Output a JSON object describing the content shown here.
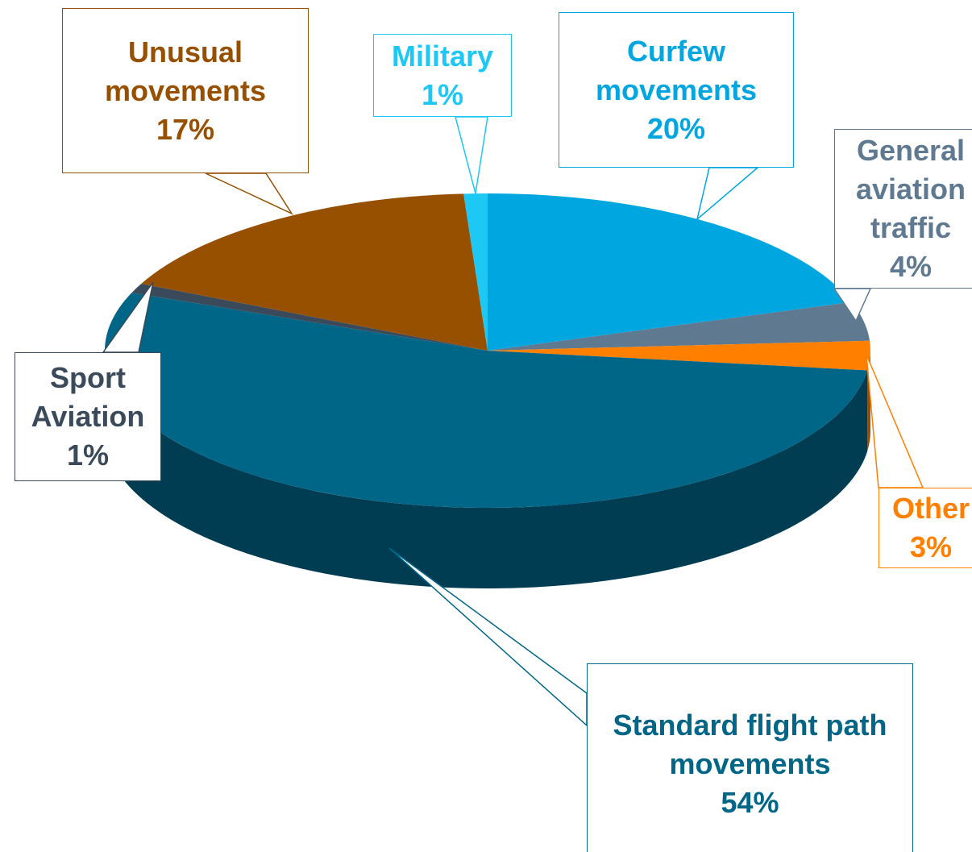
{
  "chart_data": {
    "type": "pie",
    "categories": [
      "Curfew movements",
      "General aviation traffic",
      "Other",
      "Standard flight path movements",
      "Sport Aviation",
      "Unusual movements",
      "Military"
    ],
    "values": [
      20,
      4,
      3,
      54,
      1,
      17,
      1
    ],
    "value_labels": [
      "20%",
      "4%",
      "3%",
      "54%",
      "1%",
      "17%",
      "1%"
    ],
    "colors": [
      "#00a6e0",
      "#5f7a90",
      "#ff8000",
      "#006688",
      "#3a4a5a",
      "#974f00",
      "#1ec8f5"
    ]
  }
}
